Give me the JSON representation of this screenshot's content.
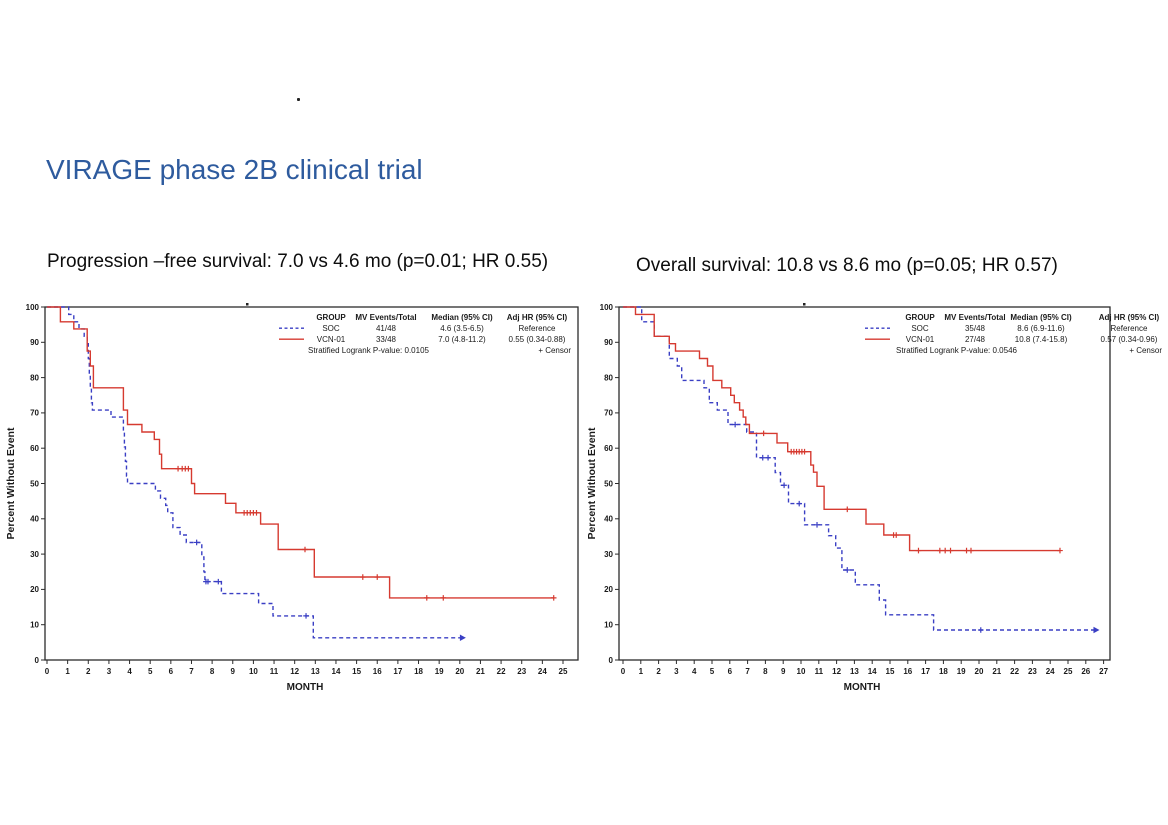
{
  "page": {
    "title": "VIRAGE phase 2B clinical trial",
    "title_color": "#2e5b9e",
    "subtitle_left": "Progression –free survival: 7.0 vs 4.6 mo (p=0.01; HR 0.55)",
    "subtitle_right": "Overall survival: 10.8 vs 8.6 mo (p=0.05; HR 0.57)"
  },
  "colors": {
    "soc": "#3a3fc4",
    "vcn": "#d63a30",
    "axis": "#2b2b2b"
  },
  "chart_data": [
    {
      "type": "line",
      "subtype": "kaplan-meier-step",
      "title": "Progression-free survival",
      "xlabel": "MONTH",
      "ylabel": "Percent Without Event",
      "xlim": [
        0,
        25.8
      ],
      "ylim": [
        0,
        100
      ],
      "xticks": [
        0,
        1,
        2,
        3,
        4,
        5,
        6,
        7,
        8,
        9,
        10,
        11,
        12,
        13,
        14,
        15,
        16,
        17,
        18,
        19,
        20,
        21,
        22,
        23,
        24,
        25
      ],
      "yticks": [
        0,
        10,
        20,
        30,
        40,
        50,
        60,
        70,
        80,
        90,
        100
      ],
      "grid": false,
      "legend_position": "top-right",
      "legend": {
        "headers": [
          "GROUP",
          "MV Events/Total",
          "Median (95% CI)",
          "Adj HR (95% CI)"
        ],
        "rows": [
          [
            "SOC",
            "41/48",
            "4.6 (3.5-6.5)",
            "Reference"
          ],
          [
            "VCN-01",
            "33/48",
            "7.0 (4.8-11.2)",
            "0.55 (0.34-0.88)"
          ]
        ],
        "footer_left": "Stratified Logrank P-value: 0.0105",
        "footer_right": "+ Censor"
      },
      "series": [
        {
          "name": "SOC",
          "style": "dashed",
          "color_key": "soc",
          "end_marker": "arrow",
          "points": [
            [
              0,
              100
            ],
            [
              1.05,
              97.9
            ],
            [
              1.3,
              95.8
            ],
            [
              1.55,
              93.8
            ],
            [
              1.8,
              91.7
            ],
            [
              1.95,
              89.6
            ],
            [
              2.0,
              85.4
            ],
            [
              2.05,
              81.3
            ],
            [
              2.1,
              77.1
            ],
            [
              2.15,
              72.9
            ],
            [
              2.2,
              70.8
            ],
            [
              3.1,
              68.8
            ],
            [
              3.7,
              64.6
            ],
            [
              3.75,
              60.4
            ],
            [
              3.8,
              56.3
            ],
            [
              3.85,
              52.1
            ],
            [
              3.9,
              50
            ],
            [
              5.25,
              47.9
            ],
            [
              5.5,
              45.8
            ],
            [
              5.75,
              43.8
            ],
            [
              5.85,
              41.7
            ],
            [
              6.1,
              37.5
            ],
            [
              6.45,
              35.4
            ],
            [
              6.75,
              33.3
            ],
            [
              7.5,
              29.2
            ],
            [
              7.6,
              25
            ],
            [
              7.65,
              22.2
            ],
            [
              8.45,
              18.8
            ],
            [
              10.25,
              16
            ],
            [
              10.95,
              12.5
            ],
            [
              12.9,
              6.3
            ],
            [
              20.15,
              6.3
            ]
          ],
          "censors": [
            [
              7.25,
              33.3
            ],
            [
              7.7,
              22.2
            ],
            [
              7.8,
              22.2
            ],
            [
              8.3,
              22.2
            ],
            [
              12.55,
              12.5
            ]
          ]
        },
        {
          "name": "VCN-01",
          "style": "solid",
          "color_key": "vcn",
          "end_marker": "plus",
          "points": [
            [
              0,
              100
            ],
            [
              0.65,
              95.8
            ],
            [
              1.3,
              93.8
            ],
            [
              1.95,
              87.5
            ],
            [
              2.1,
              83.3
            ],
            [
              2.25,
              77.1
            ],
            [
              3.7,
              70.8
            ],
            [
              3.9,
              66.7
            ],
            [
              4.6,
              64.6
            ],
            [
              5.2,
              62.5
            ],
            [
              5.45,
              58.3
            ],
            [
              5.55,
              54.2
            ],
            [
              7.0,
              50
            ],
            [
              7.15,
              47.1
            ],
            [
              8.65,
              44.4
            ],
            [
              9.15,
              41.7
            ],
            [
              10.35,
              38.5
            ],
            [
              11.2,
              31.3
            ],
            [
              12.95,
              23.5
            ],
            [
              16.6,
              17.6
            ],
            [
              24.55,
              17.6
            ]
          ],
          "censors": [
            [
              6.35,
              54.2
            ],
            [
              6.55,
              54.2
            ],
            [
              6.7,
              54.2
            ],
            [
              6.85,
              54.2
            ],
            [
              9.55,
              41.7
            ],
            [
              9.7,
              41.7
            ],
            [
              9.85,
              41.7
            ],
            [
              10.0,
              41.7
            ],
            [
              10.15,
              41.7
            ],
            [
              12.5,
              31.3
            ],
            [
              15.3,
              23.5
            ],
            [
              16.0,
              23.5
            ],
            [
              18.4,
              17.6
            ],
            [
              19.2,
              17.6
            ],
            [
              24.55,
              17.6
            ]
          ]
        }
      ]
    },
    {
      "type": "line",
      "subtype": "kaplan-meier-step",
      "title": "Overall survival",
      "xlabel": "MONTH",
      "ylabel": "Percent Without Event",
      "xlim": [
        0,
        27.4
      ],
      "ylim": [
        0,
        100
      ],
      "xticks": [
        0,
        1,
        2,
        3,
        4,
        5,
        6,
        7,
        8,
        9,
        10,
        11,
        12,
        13,
        14,
        15,
        16,
        17,
        18,
        19,
        20,
        21,
        22,
        23,
        24,
        25,
        26,
        27
      ],
      "yticks": [
        0,
        10,
        20,
        30,
        40,
        50,
        60,
        70,
        80,
        90,
        100
      ],
      "grid": false,
      "legend_position": "top-right",
      "legend": {
        "headers": [
          "GROUP",
          "MV Events/Total",
          "Median (95% CI)",
          "Adj HR (95% CI)"
        ],
        "rows": [
          [
            "SOC",
            "35/48",
            "8.6 (6.9-11.6)",
            "Reference"
          ],
          [
            "VCN-01",
            "27/48",
            "10.8 (7.4-15.8)",
            "0.57 (0.34-0.96)"
          ]
        ],
        "footer_left": "Stratified Logrank P-value: 0.0546",
        "footer_right": "+ Censor"
      },
      "series": [
        {
          "name": "SOC",
          "style": "dashed",
          "color_key": "soc",
          "end_marker": "arrow",
          "points": [
            [
              0,
              100
            ],
            [
              1.05,
              95.8
            ],
            [
              1.75,
              91.7
            ],
            [
              2.6,
              85.4
            ],
            [
              3.05,
              83.3
            ],
            [
              3.3,
              79.2
            ],
            [
              4.55,
              77.1
            ],
            [
              4.85,
              72.9
            ],
            [
              5.3,
              70.8
            ],
            [
              5.9,
              66.7
            ],
            [
              6.95,
              64.6
            ],
            [
              7.5,
              57.3
            ],
            [
              8.55,
              53.1
            ],
            [
              8.85,
              49.5
            ],
            [
              9.3,
              44.3
            ],
            [
              10.2,
              38.3
            ],
            [
              11.55,
              35.2
            ],
            [
              11.95,
              31.7
            ],
            [
              12.3,
              25.5
            ],
            [
              13.05,
              21.3
            ],
            [
              14.4,
              17
            ],
            [
              14.75,
              12.8
            ],
            [
              17.45,
              8.5
            ],
            [
              26.6,
              8.5
            ]
          ],
          "censors": [
            [
              6.3,
              66.7
            ],
            [
              7.85,
              57.3
            ],
            [
              8.15,
              57.3
            ],
            [
              9.05,
              49.5
            ],
            [
              9.9,
              44.3
            ],
            [
              10.9,
              38.3
            ],
            [
              12.6,
              25.5
            ],
            [
              20.1,
              8.5
            ]
          ]
        },
        {
          "name": "VCN-01",
          "style": "solid",
          "color_key": "vcn",
          "end_marker": "plus",
          "points": [
            [
              0,
              100
            ],
            [
              0.7,
              97.9
            ],
            [
              1.75,
              91.7
            ],
            [
              2.6,
              89.6
            ],
            [
              2.95,
              87.5
            ],
            [
              4.3,
              85.4
            ],
            [
              4.75,
              83.3
            ],
            [
              5.05,
              79.2
            ],
            [
              5.55,
              77.1
            ],
            [
              6.05,
              75
            ],
            [
              6.25,
              72.9
            ],
            [
              6.55,
              70.8
            ],
            [
              6.75,
              68.8
            ],
            [
              6.9,
              66.7
            ],
            [
              7.1,
              64.2
            ],
            [
              8.65,
              61.5
            ],
            [
              9.25,
              59
            ],
            [
              10.55,
              55.2
            ],
            [
              10.7,
              53.2
            ],
            [
              10.9,
              49.2
            ],
            [
              11.3,
              42.7
            ],
            [
              13.65,
              38.5
            ],
            [
              14.65,
              35.4
            ],
            [
              16.1,
              31
            ],
            [
              24.55,
              31
            ]
          ],
          "censors": [
            [
              7.9,
              64.2
            ],
            [
              9.45,
              59
            ],
            [
              9.6,
              59
            ],
            [
              9.75,
              59
            ],
            [
              9.9,
              59
            ],
            [
              10.05,
              59
            ],
            [
              10.2,
              59
            ],
            [
              12.6,
              42.7
            ],
            [
              15.2,
              35.4
            ],
            [
              15.35,
              35.4
            ],
            [
              16.6,
              31
            ],
            [
              17.8,
              31
            ],
            [
              18.1,
              31
            ],
            [
              18.4,
              31
            ],
            [
              19.3,
              31
            ],
            [
              19.55,
              31
            ],
            [
              24.55,
              31
            ]
          ]
        }
      ]
    }
  ]
}
